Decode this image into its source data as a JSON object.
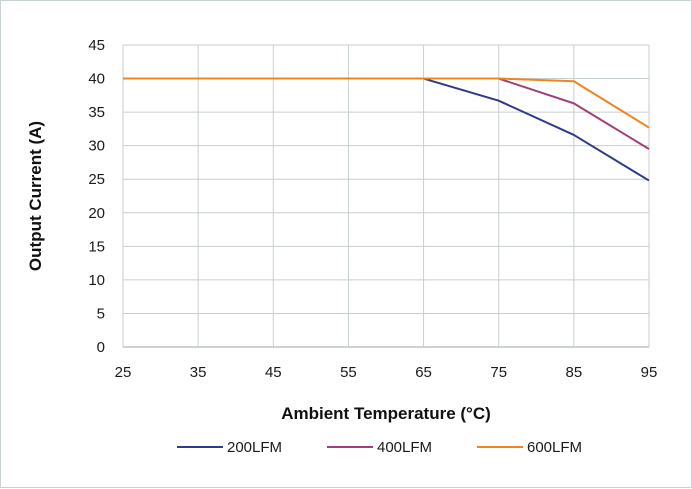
{
  "chart_data": {
    "type": "line",
    "xlabel": "Ambient Temperature (°C)",
    "ylabel": "Output Current (A)",
    "x": [
      25,
      35,
      45,
      55,
      65,
      75,
      85,
      95
    ],
    "xlim": [
      25,
      95
    ],
    "ylim": [
      0,
      45
    ],
    "xticks": [
      25,
      35,
      45,
      55,
      65,
      75,
      85,
      95
    ],
    "yticks": [
      0,
      5,
      10,
      15,
      20,
      25,
      30,
      35,
      40,
      45
    ],
    "grid": true,
    "legend_position": "bottom",
    "series": [
      {
        "name": "200LFM",
        "color": "#2e3a8c",
        "values": [
          40,
          40,
          40,
          40,
          40,
          36.7,
          31.6,
          24.8
        ]
      },
      {
        "name": "400LFM",
        "color": "#a33f77",
        "values": [
          40,
          40,
          40,
          40,
          40,
          40,
          36.3,
          29.5
        ]
      },
      {
        "name": "600LFM",
        "color": "#f0851e",
        "values": [
          40,
          40,
          40,
          40,
          40,
          40,
          39.6,
          32.7
        ]
      }
    ]
  }
}
